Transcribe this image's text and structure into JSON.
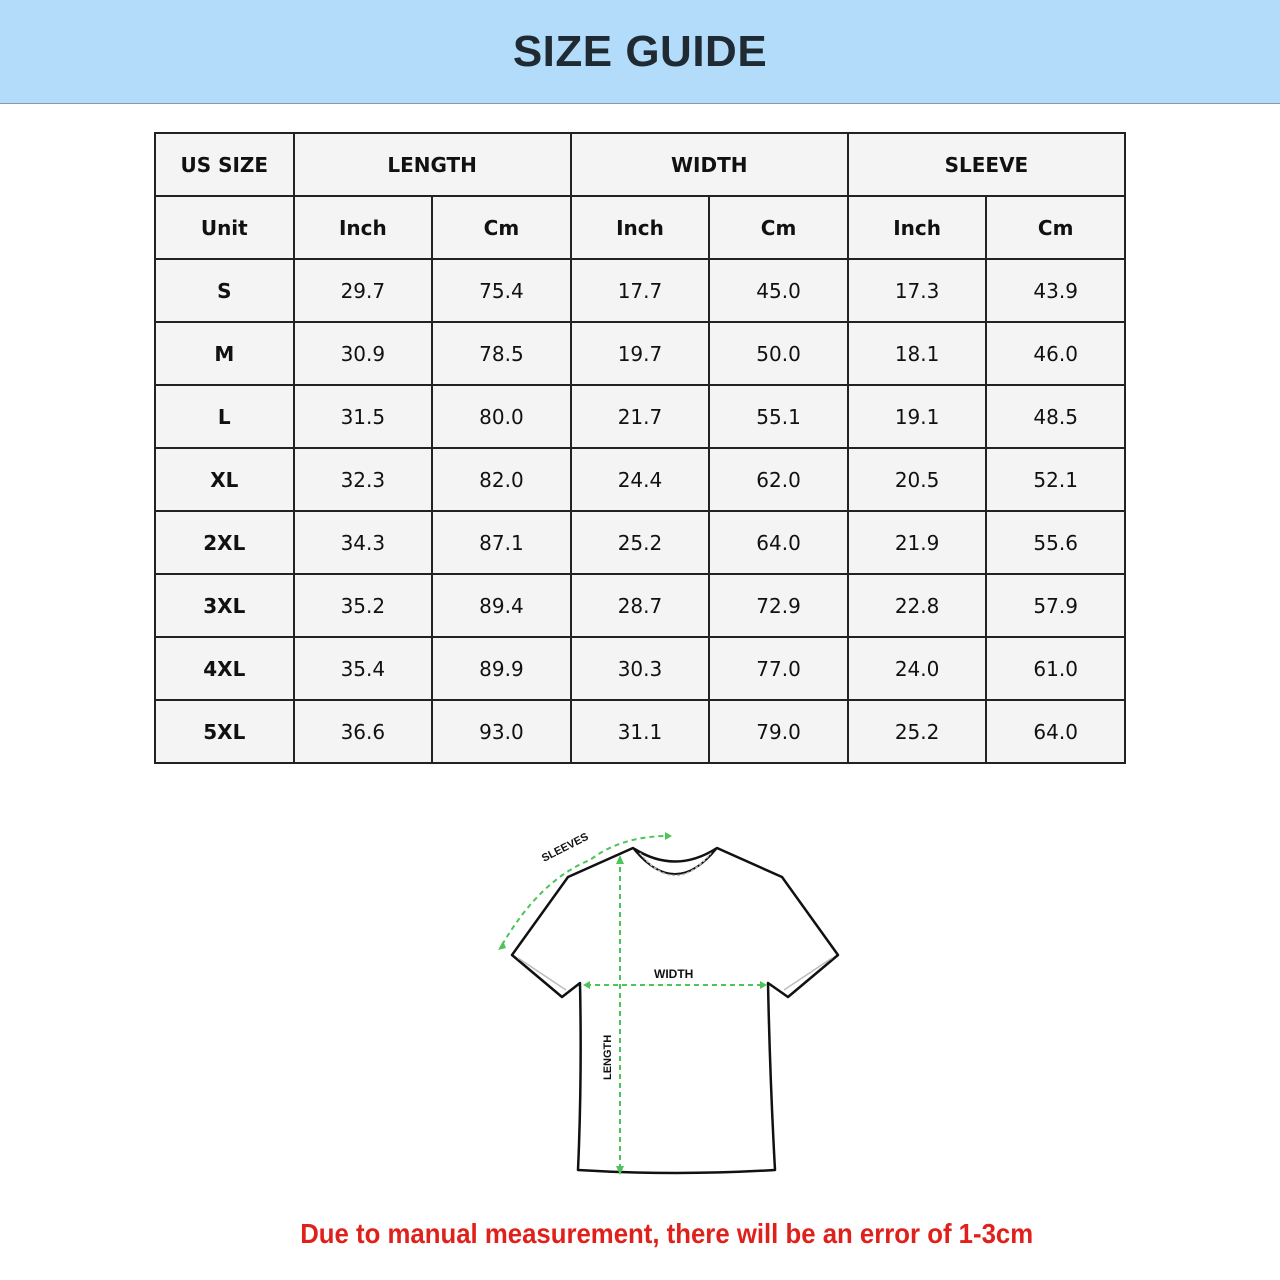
{
  "title": "SIZE GUIDE",
  "table": {
    "group_headers": [
      "US SIZE",
      "LENGTH",
      "WIDTH",
      "SLEEVE"
    ],
    "unit_headers": [
      "Unit",
      "Inch",
      "Cm",
      "Inch",
      "Cm",
      "Inch",
      "Cm"
    ],
    "rows": [
      [
        "S",
        "29.7",
        "75.4",
        "17.7",
        "45.0",
        "17.3",
        "43.9"
      ],
      [
        "M",
        "30.9",
        "78.5",
        "19.7",
        "50.0",
        "18.1",
        "46.0"
      ],
      [
        "L",
        "31.5",
        "80.0",
        "21.7",
        "55.1",
        "19.1",
        "48.5"
      ],
      [
        "XL",
        "32.3",
        "82.0",
        "24.4",
        "62.0",
        "20.5",
        "52.1"
      ],
      [
        "2XL",
        "34.3",
        "87.1",
        "25.2",
        "64.0",
        "21.9",
        "55.6"
      ],
      [
        "3XL",
        "35.2",
        "89.4",
        "28.7",
        "72.9",
        "22.8",
        "57.9"
      ],
      [
        "4XL",
        "35.4",
        "89.9",
        "30.3",
        "77.0",
        "24.0",
        "61.0"
      ],
      [
        "5XL",
        "36.6",
        "93.0",
        "31.1",
        "79.0",
        "25.2",
        "64.0"
      ]
    ]
  },
  "diagram": {
    "sleeves_label": "SLEEVES",
    "width_label": "WIDTH",
    "length_label": "LENGTH",
    "arrow_color": "#4cc45a"
  },
  "note": "Due to manual measurement, there will be an error of 1-3cm",
  "colors": {
    "banner": "#b3dcfb",
    "note": "#e0201b"
  }
}
